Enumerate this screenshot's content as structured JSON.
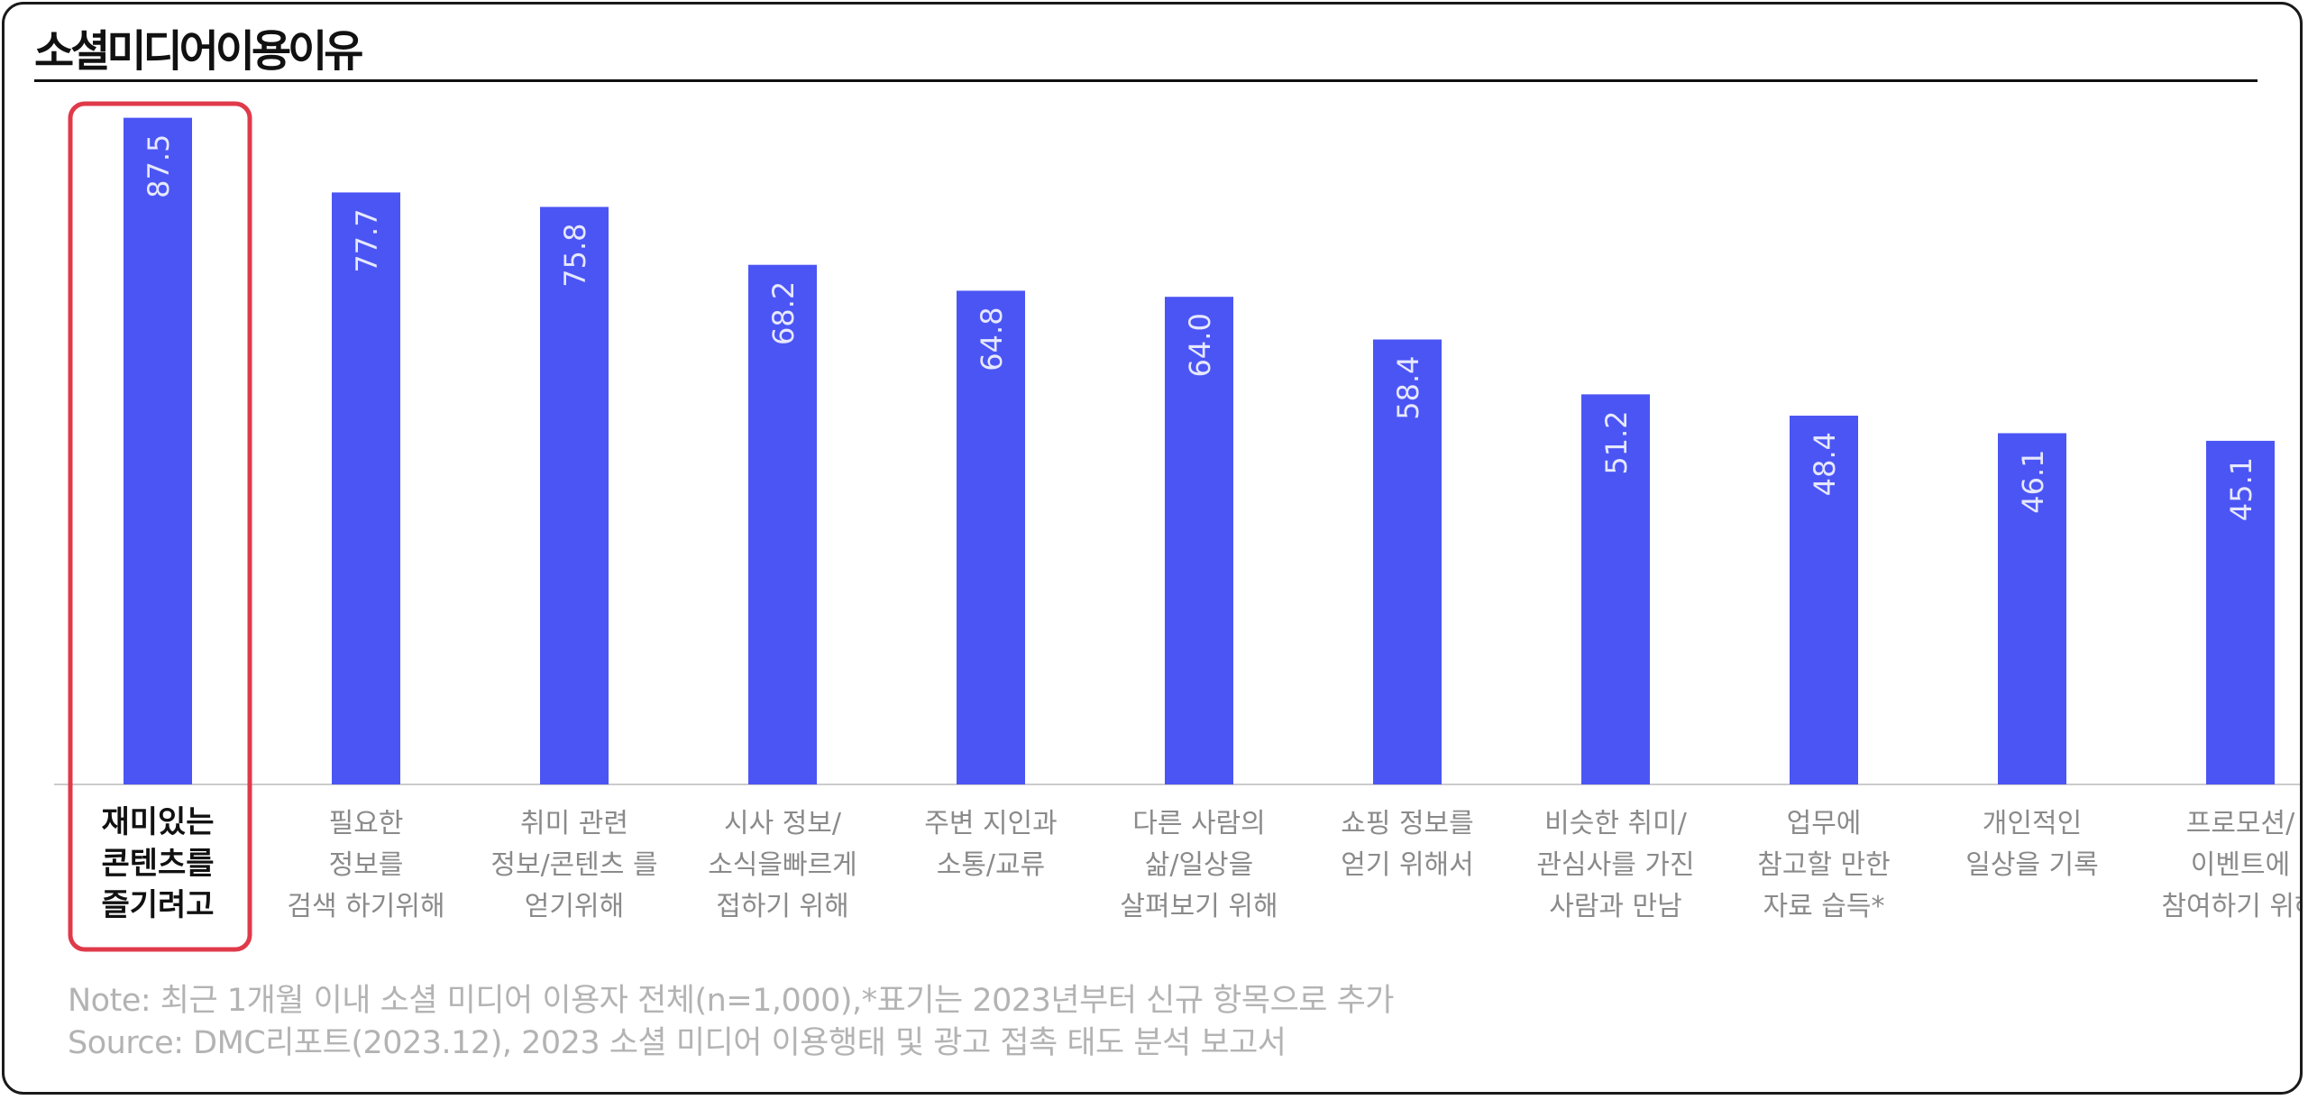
{
  "title": "소셜미디어이용이유",
  "colors": {
    "bar": "#4B55F4",
    "bar_label": "#e6e8ff",
    "highlight_border": "#e03a4a",
    "category_text": "#8a8a8a",
    "highlight_text": "#111111",
    "baseline": "#cccccc"
  },
  "chart_data": {
    "type": "bar",
    "categories": [
      [
        "재미있는",
        "콘텐츠를",
        "즐기려고"
      ],
      [
        "필요한",
        "정보를",
        "검색 하기위해"
      ],
      [
        "취미 관련",
        "정보/콘텐츠 를",
        "얻기위해"
      ],
      [
        "시사 정보/",
        "소식을빠르게",
        "접하기 위해"
      ],
      [
        "주변 지인과",
        "소통/교류"
      ],
      [
        "다른 사람의",
        "삶/일상을",
        "살펴보기 위해"
      ],
      [
        "쇼핑 정보를",
        "얻기 위해서"
      ],
      [
        "비슷한 취미/",
        "관심사를 가진",
        "사람과 만남"
      ],
      [
        "업무에",
        "참고할 만한",
        "자료 습득*"
      ],
      [
        "개인적인",
        "일상을 기록"
      ],
      [
        "프로모션/",
        "이벤트에",
        "참여하기 위해"
      ]
    ],
    "values": [
      87.5,
      77.7,
      75.8,
      68.2,
      64.8,
      64.0,
      58.4,
      51.2,
      48.4,
      46.1,
      45.1
    ],
    "value_labels": [
      "87.5",
      "77.7",
      "75.8",
      "68.2",
      "64.8",
      "64.0",
      "58.4",
      "51.2",
      "48.4",
      "46.1",
      "45.1"
    ],
    "highlight_index": 0,
    "ylim": [
      0,
      100
    ],
    "xlabel": "",
    "ylabel": "",
    "grid": false
  },
  "notes": {
    "note": "Note: 최근 1개월 이내 소셜 미디어 이용자 전체(n=1,000),*표기는 2023년부터 신규 항목으로 추가",
    "source": "Source: DMC리포트(2023.12), 2023 소셜 미디어 이용행태 및 광고 접촉 태도 분석 보고서"
  }
}
